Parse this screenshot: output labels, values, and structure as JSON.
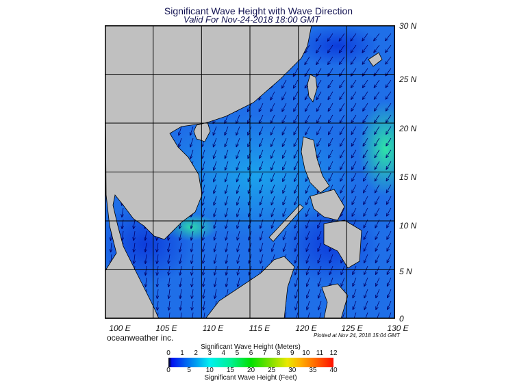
{
  "title": "Significant Wave Height with Wave Direction",
  "subtitle": "Valid For Nov-24-2018 18:00 GMT",
  "brand": "oceanweather inc.",
  "plotted": "Plotted at Nov 24, 2018 15:04 GMT",
  "map": {
    "region": "South China Sea",
    "lon_range": [
      100,
      130
    ],
    "lat_range": [
      0,
      30
    ],
    "lat_labels": [
      "30 N",
      "25 N",
      "20 N",
      "15 N",
      "10 N",
      "5 N",
      "0"
    ],
    "lon_labels": [
      "100 E",
      "105 E",
      "110 E",
      "115 E",
      "120 E",
      "125 E",
      "130 E"
    ],
    "land_color": "#c0c0c0",
    "ocean_color": "#1f6fe8",
    "arrow_color": "#00006a"
  },
  "legend": {
    "meters_title": "Significant Wave Height (Meters)",
    "feet_title": "Significant Wave Height (Feet)",
    "meters_ticks": [
      "0",
      "1",
      "2",
      "3",
      "4",
      "5",
      "6",
      "7",
      "8",
      "9",
      "10",
      "11",
      "12"
    ],
    "feet_ticks": [
      "0",
      "5",
      "10",
      "15",
      "20",
      "25",
      "30",
      "35",
      "40"
    ]
  }
}
